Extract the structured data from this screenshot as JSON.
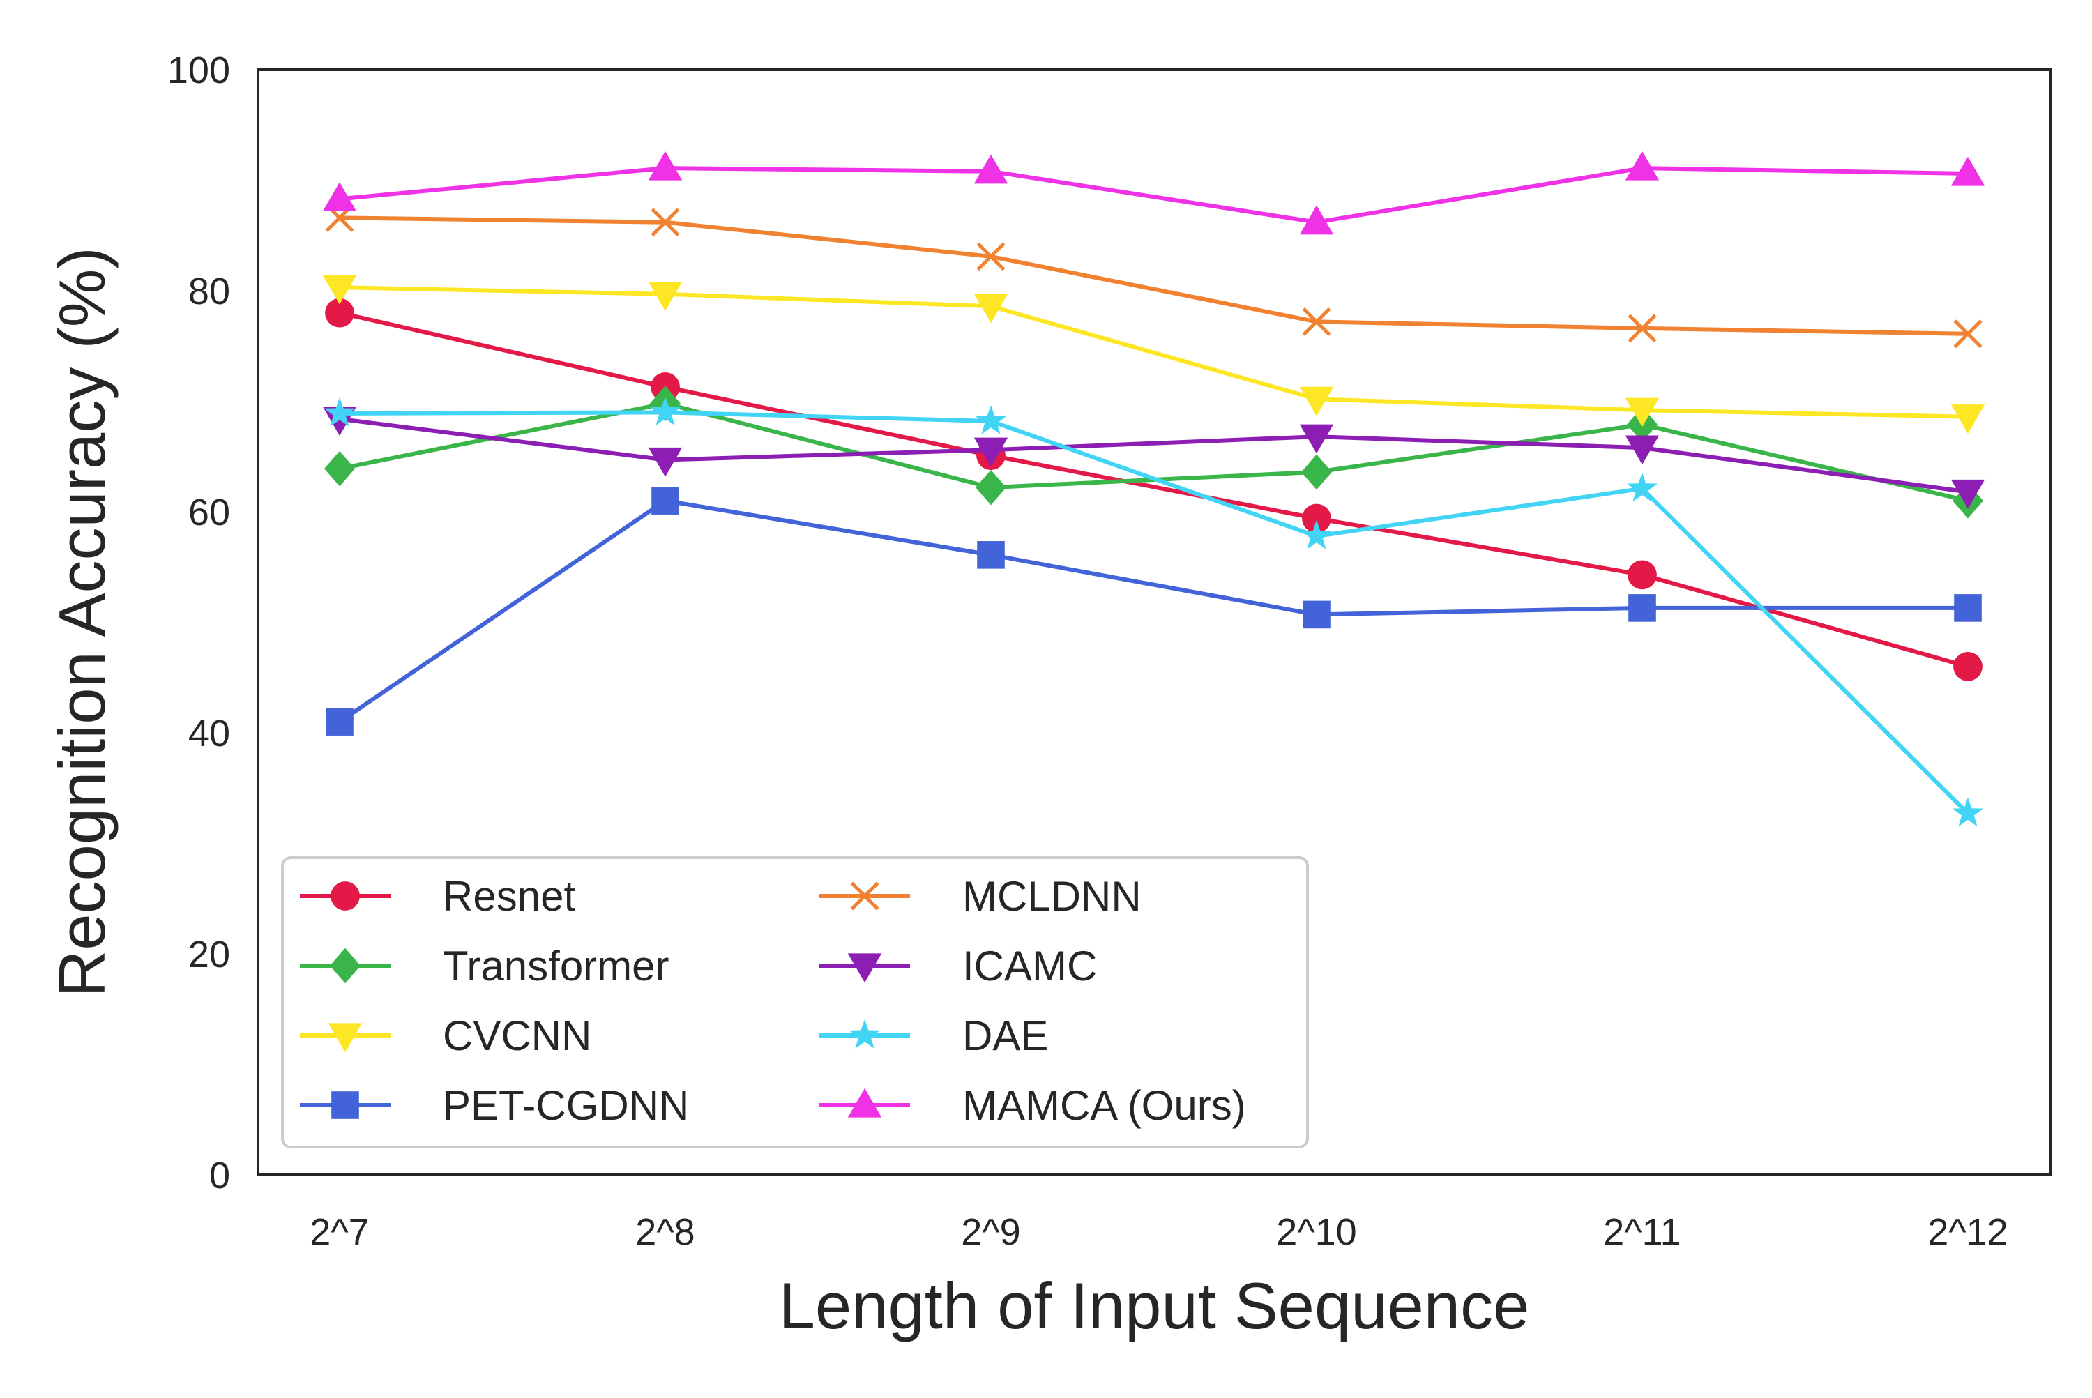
{
  "chart_data": {
    "type": "line",
    "title": "",
    "xlabel": "Length of Input Sequence",
    "ylabel": "Recognition Accuracy (%)",
    "categories": [
      "2^7",
      "2^8",
      "2^9",
      "2^10",
      "2^11",
      "2^12"
    ],
    "ylim": [
      0,
      100
    ],
    "yticks": [
      "0",
      "20",
      "40",
      "60",
      "80",
      "100"
    ],
    "grid": false,
    "legend_position": "bottom-left",
    "series": [
      {
        "name": "Resnet",
        "marker": "circle",
        "color": "#e31a47",
        "values": [
          78.0,
          71.3,
          65.1,
          59.4,
          54.3,
          46.0
        ]
      },
      {
        "name": "Transformer",
        "marker": "diamond",
        "color": "#3ab54a",
        "values": [
          63.9,
          69.8,
          62.2,
          63.6,
          67.9,
          61.0
        ]
      },
      {
        "name": "CVCNN",
        "marker": "triangle-down",
        "color": "#fde725",
        "values": [
          80.3,
          79.7,
          78.6,
          70.2,
          69.2,
          68.6
        ]
      },
      {
        "name": "PET-CGDNN",
        "marker": "square",
        "color": "#4363d8",
        "values": [
          41.0,
          61.0,
          56.1,
          50.7,
          51.3,
          51.3
        ]
      },
      {
        "name": "MCLDNN",
        "marker": "x",
        "color": "#f08232",
        "values": [
          86.6,
          86.2,
          83.1,
          77.2,
          76.6,
          76.1
        ]
      },
      {
        "name": "ICAMC",
        "marker": "triangle-down",
        "color": "#8c1eb4",
        "values": [
          68.4,
          64.7,
          65.6,
          66.8,
          65.8,
          61.8
        ]
      },
      {
        "name": "DAE",
        "marker": "star",
        "color": "#42d4f4",
        "values": [
          68.9,
          69.0,
          68.2,
          57.8,
          62.1,
          32.7
        ]
      },
      {
        "name": "MAMCA (Ours)",
        "marker": "triangle-up",
        "color": "#f032e6",
        "values": [
          88.3,
          91.1,
          90.8,
          86.2,
          91.1,
          90.6
        ]
      }
    ]
  }
}
